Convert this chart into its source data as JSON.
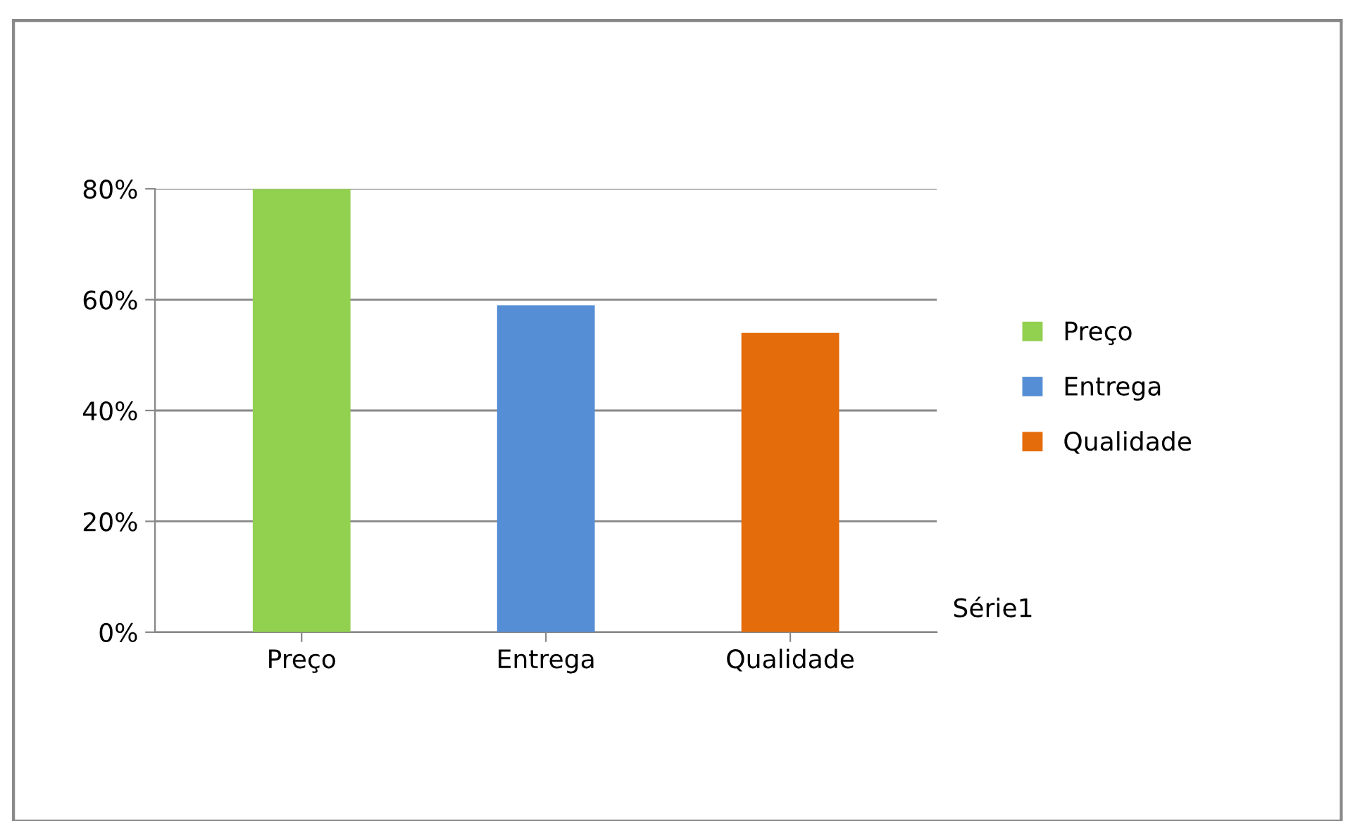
{
  "chart_data": {
    "type": "bar",
    "categories": [
      "Preço",
      "Entrega",
      "Qualidade"
    ],
    "series": [
      {
        "name": "Preço",
        "color": "#92d050",
        "values": [
          80,
          null,
          null
        ]
      },
      {
        "name": "Entrega",
        "color": "#558ed5",
        "values": [
          null,
          59,
          null
        ]
      },
      {
        "name": "Qualidade",
        "color": "#e46c0a",
        "values": [
          null,
          null,
          54
        ]
      }
    ],
    "ylim": [
      0,
      80
    ],
    "yticks": [
      {
        "value": 0,
        "label": "0%"
      },
      {
        "value": 20,
        "label": "20%"
      },
      {
        "value": 40,
        "label": "40%"
      },
      {
        "value": 60,
        "label": "60%"
      },
      {
        "value": 80,
        "label": "80%"
      }
    ],
    "grid": "y",
    "legend": "right",
    "annotations": [
      "Série1"
    ]
  }
}
